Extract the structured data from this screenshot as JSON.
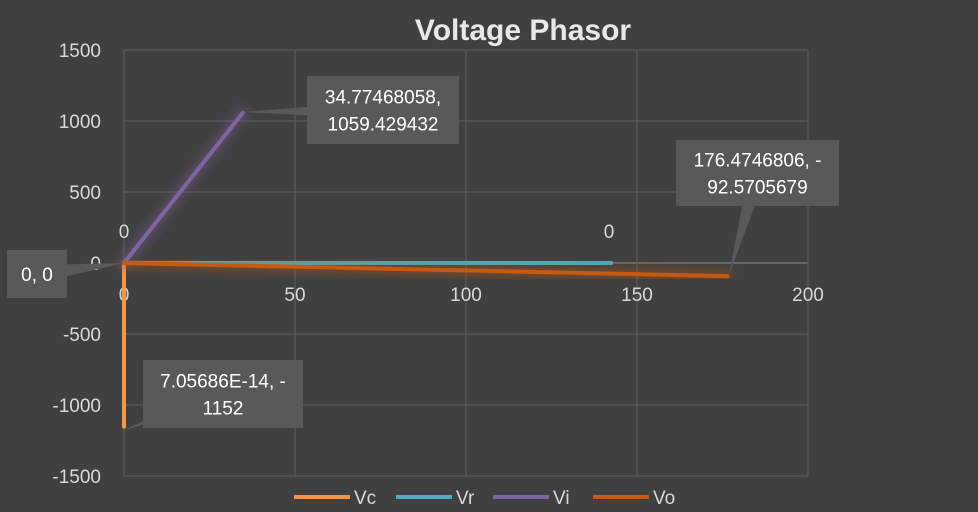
{
  "chart_data": {
    "type": "scatter",
    "title": "Voltage Phasor",
    "xlabel": "",
    "ylabel": "",
    "xlim": [
      0,
      200
    ],
    "ylim": [
      -1500,
      1500
    ],
    "x_ticks": [
      0,
      50,
      100,
      150,
      200
    ],
    "y_ticks": [
      1500,
      1000,
      500,
      0,
      -500,
      -1000,
      -1500
    ],
    "grid": true,
    "legend_position": "bottom",
    "series": [
      {
        "name": "Vc",
        "color": "#f79646",
        "points": [
          [
            0,
            0
          ],
          [
            7.05686e-14,
            -1152
          ]
        ]
      },
      {
        "name": "Vr",
        "color": "#4bacc6",
        "points": [
          [
            0,
            0
          ],
          [
            142.5,
            0
          ]
        ]
      },
      {
        "name": "Vi",
        "color": "#8064a2",
        "points": [
          [
            0,
            0
          ],
          [
            34.77468058,
            1059.429432
          ]
        ]
      },
      {
        "name": "Vo",
        "color": "#c55a11",
        "points": [
          [
            0,
            0
          ],
          [
            176.4746806,
            -92.5705679
          ]
        ]
      }
    ],
    "annotations": [
      {
        "lines": [
          "0, 0"
        ],
        "boxed": true
      },
      {
        "lines": [
          "34.77468058,",
          "1059.429432"
        ],
        "boxed": true
      },
      {
        "lines": [
          "176.4746806, -",
          "92.5705679"
        ],
        "boxed": true
      },
      {
        "lines": [
          "7.05686E-14, -",
          "1152"
        ],
        "boxed": true
      },
      {
        "lines": [
          "0"
        ],
        "boxed": false
      },
      {
        "lines": [
          "0"
        ],
        "boxed": false
      }
    ]
  }
}
